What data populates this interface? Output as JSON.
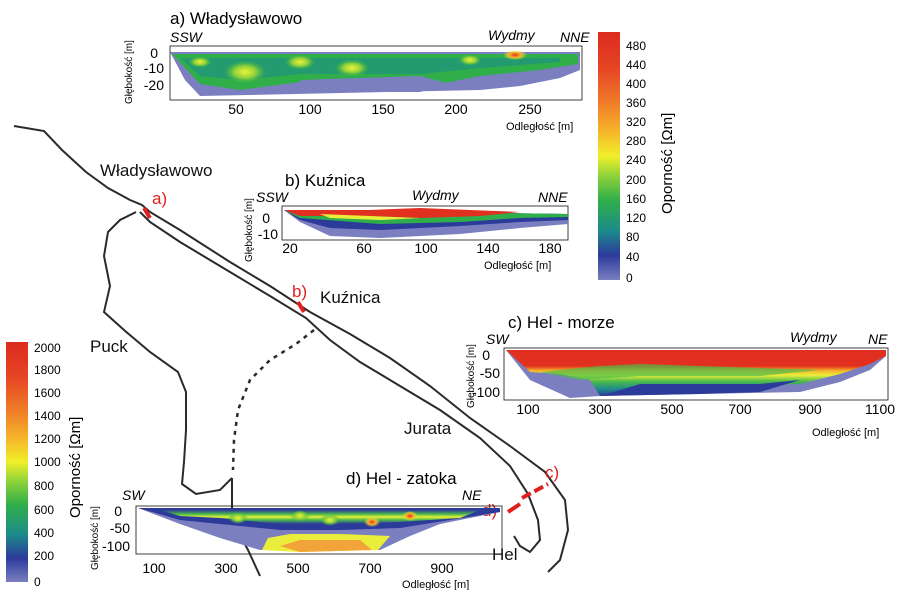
{
  "map": {
    "places": {
      "wladyslawowo": "Władysławowo",
      "kuznica": "Kuźnica",
      "puck": "Puck",
      "jurata": "Jurata",
      "hel": "Hel"
    },
    "markers": [
      "a)",
      "b)",
      "c)",
      "d)"
    ]
  },
  "colors": {
    "map_line": "#2a2a2a",
    "profile_marker": "#e02020",
    "low": "#7b7fc0",
    "high": "#e23020"
  },
  "colorbars": {
    "small": {
      "label": "Oporność [Ωm]",
      "ticks": [
        "480",
        "440",
        "400",
        "360",
        "320",
        "280",
        "240",
        "200",
        "160",
        "120",
        "80",
        "40",
        "0"
      ]
    },
    "large": {
      "label": "Oporność [Ωm]",
      "ticks": [
        "2000",
        "1800",
        "1600",
        "1400",
        "1200",
        "1000",
        "800",
        "600",
        "400",
        "200",
        "0"
      ]
    }
  },
  "panels": {
    "a": {
      "title": "a) Władysławowo",
      "left": "SSW",
      "right": "NNE",
      "feature": "Wydmy",
      "ylabel": "Głębokość [m]",
      "xlabel": "Odległość [m]",
      "yticks": [
        "0",
        "-10",
        "-20"
      ],
      "xticks": [
        "50",
        "100",
        "150",
        "200",
        "250"
      ]
    },
    "b": {
      "title": "b) Kuźnica",
      "left": "SSW",
      "right": "NNE",
      "feature": "Wydmy",
      "ylabel": "Głębokość [m]",
      "xlabel": "Odległość [m]",
      "yticks": [
        "0",
        "-10"
      ],
      "xticks": [
        "20",
        "60",
        "100",
        "140",
        "180"
      ]
    },
    "c": {
      "title": "c) Hel - morze",
      "left": "SW",
      "right": "NE",
      "feature": "Wydmy",
      "ylabel": "Głębokość [m]",
      "xlabel": "Odległość [m]",
      "yticks": [
        "0",
        "-50",
        "-100"
      ],
      "xticks": [
        "100",
        "300",
        "500",
        "700",
        "900",
        "1100"
      ]
    },
    "d": {
      "title": "d) Hel - zatoka",
      "left": "SW",
      "right": "NE",
      "ylabel": "Głębokość [m]",
      "xlabel": "Odległość [m]",
      "yticks": [
        "0",
        "-50",
        "-100"
      ],
      "xticks": [
        "100",
        "300",
        "500",
        "700",
        "900"
      ]
    }
  }
}
